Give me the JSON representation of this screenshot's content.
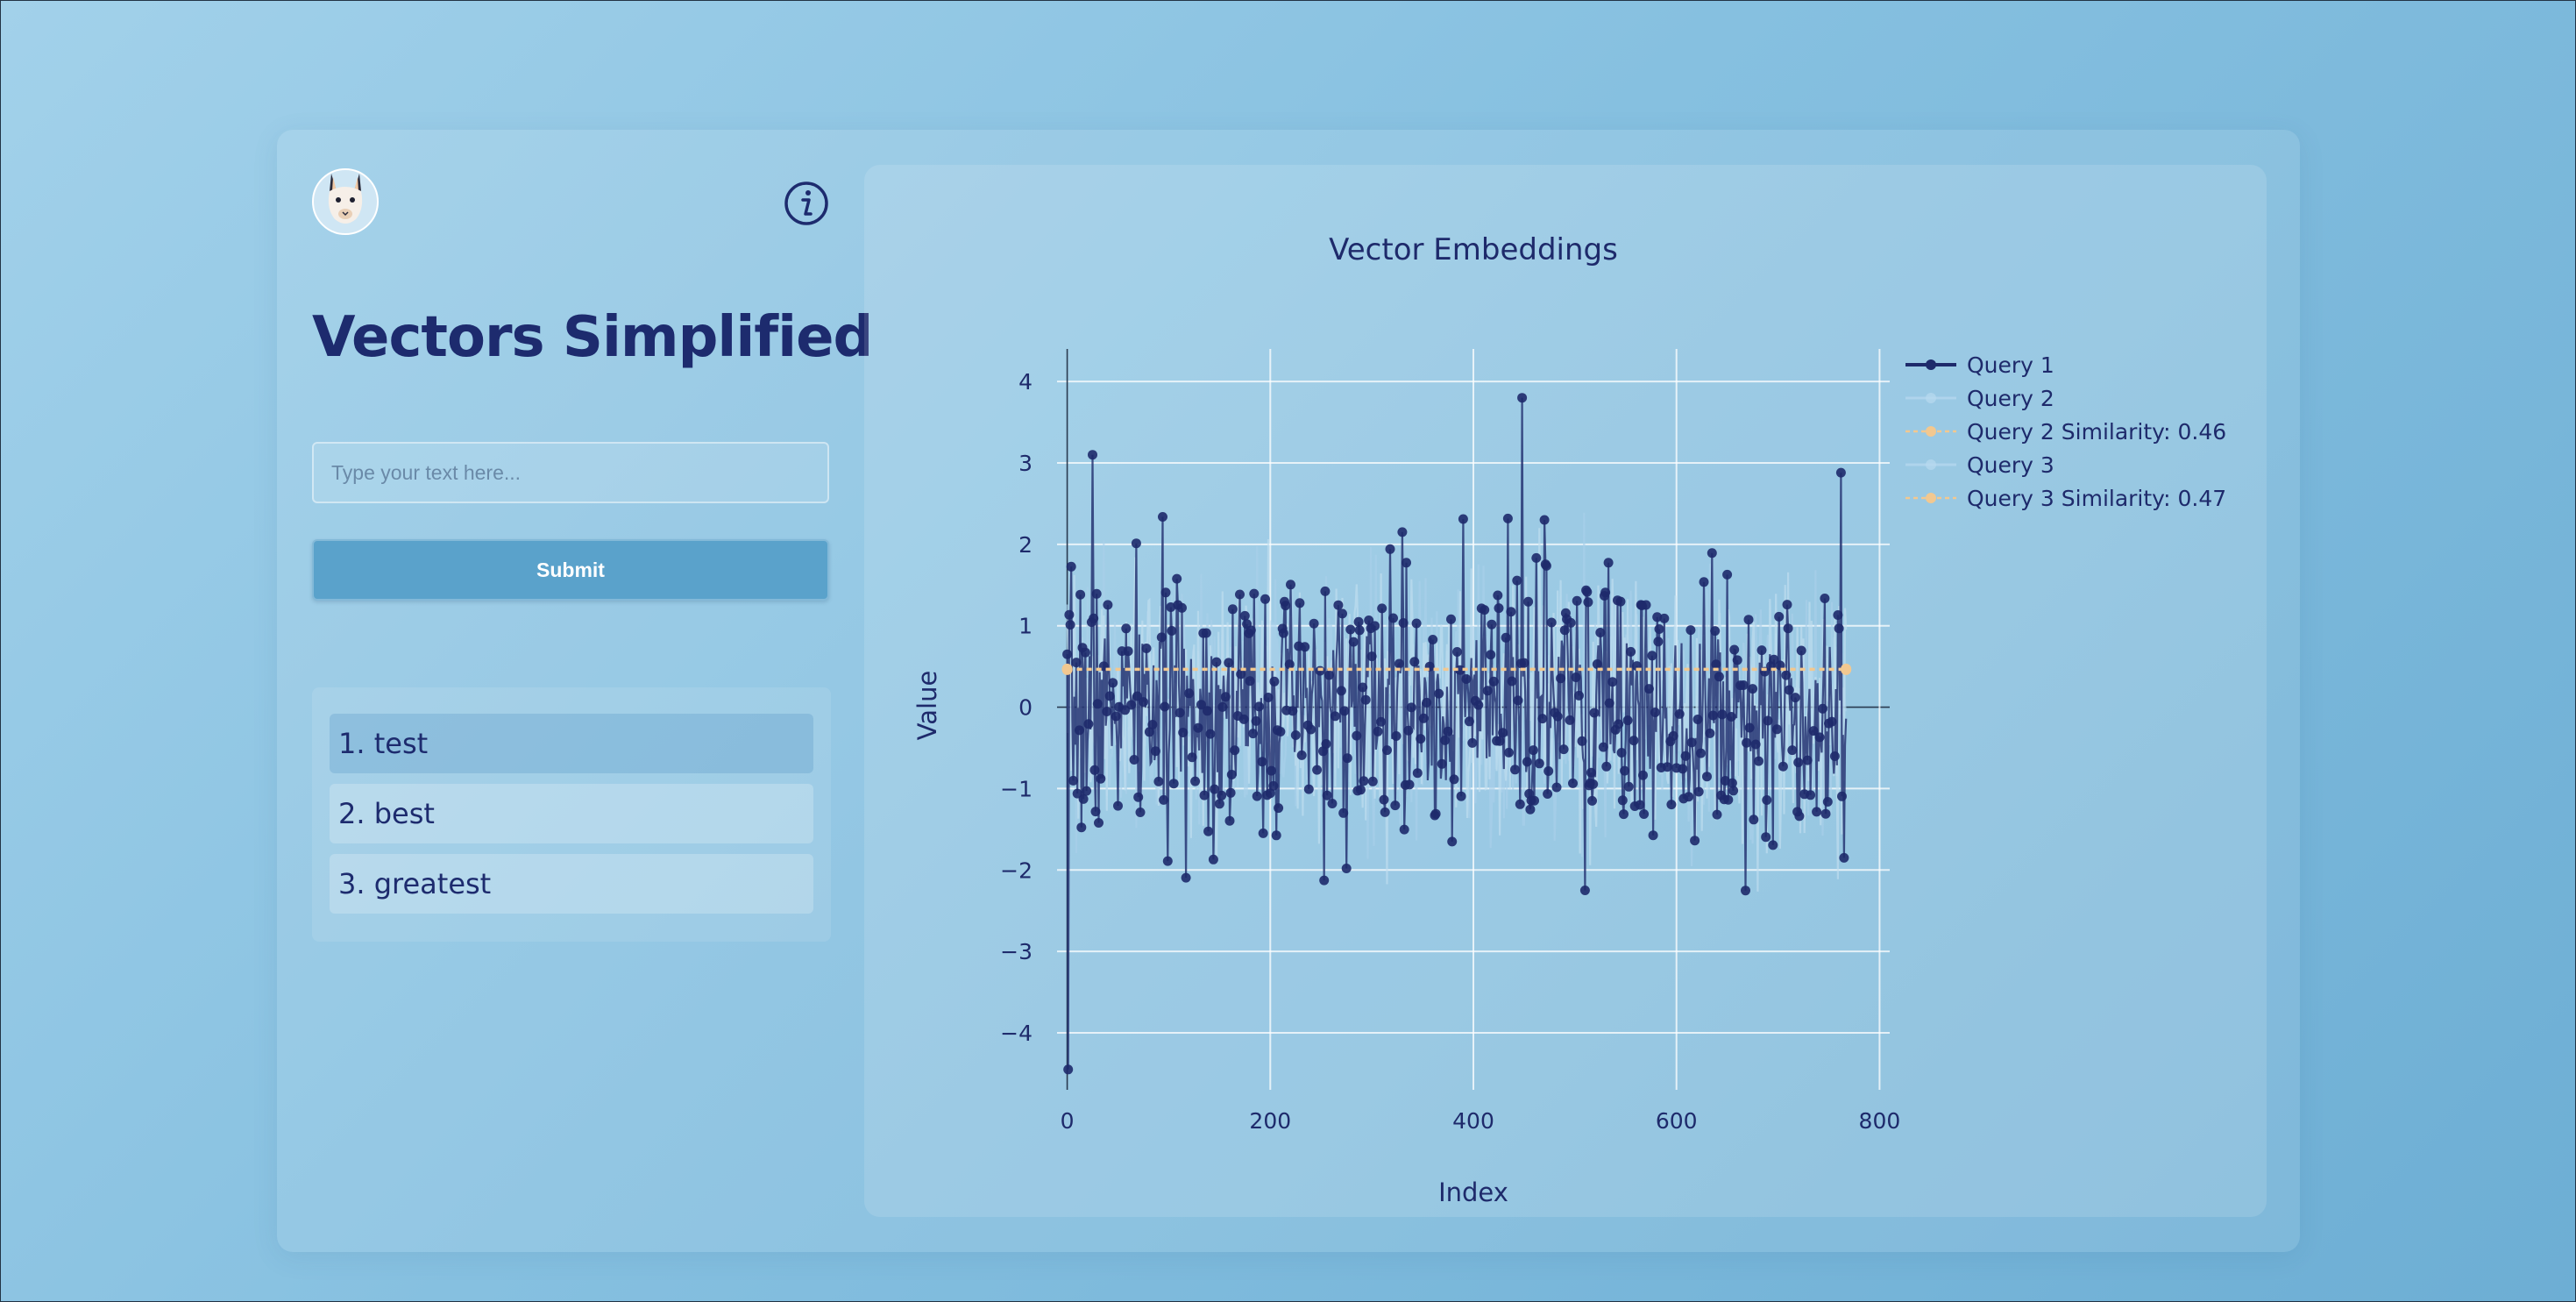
{
  "app": {
    "title": "Vectors Simplified",
    "logo_icon": "llama-icon",
    "info_icon": "info-icon"
  },
  "input": {
    "placeholder": "Type your text here...",
    "value": ""
  },
  "submit": {
    "label": "Submit"
  },
  "queries": [
    {
      "label": "1. test",
      "active": true
    },
    {
      "label": "2. best",
      "active": false
    },
    {
      "label": "3. greatest",
      "active": false
    }
  ],
  "colors": {
    "accent": "#5aa2cb",
    "title": "#1d2b6e",
    "query1": "#1e2a6b",
    "query_light": "#b8daf0",
    "similarity": "#f2c890"
  },
  "chart_data": {
    "type": "line",
    "title": "Vector Embeddings",
    "xlabel": "Index",
    "ylabel": "Value",
    "xlim": [
      -10,
      810
    ],
    "ylim": [
      -4.7,
      4.4
    ],
    "xticks": [
      0,
      200,
      400,
      600,
      800
    ],
    "yticks": [
      -4,
      -3,
      -2,
      -1,
      0,
      1,
      2,
      3,
      4
    ],
    "grid": true,
    "legend_position": "right",
    "series": [
      {
        "name": "Query 1",
        "n_points": 768,
        "seed": 7,
        "style": "line-markers",
        "highlights": [
          [
            0,
            0.65
          ],
          [
            1,
            -4.45
          ],
          [
            25,
            3.1
          ],
          [
            448,
            3.8
          ],
          [
            470,
            2.3
          ],
          [
            762,
            2.88
          ],
          [
            765,
            -1.85
          ],
          [
            510,
            -2.25
          ],
          [
            330,
            2.15
          ]
        ]
      },
      {
        "name": "Query 2",
        "n_points": 768,
        "seed": 19,
        "style": "light-line"
      },
      {
        "name": "Query 2 Similarity: 0.46",
        "x": [
          0,
          767
        ],
        "y": [
          0.46,
          0.46
        ],
        "style": "dash"
      },
      {
        "name": "Query 3",
        "n_points": 768,
        "seed": 31,
        "style": "light-line"
      },
      {
        "name": "Query 3 Similarity: 0.47",
        "x": [
          0,
          767
        ],
        "y": [
          0.47,
          0.47
        ],
        "style": "dash"
      }
    ]
  }
}
